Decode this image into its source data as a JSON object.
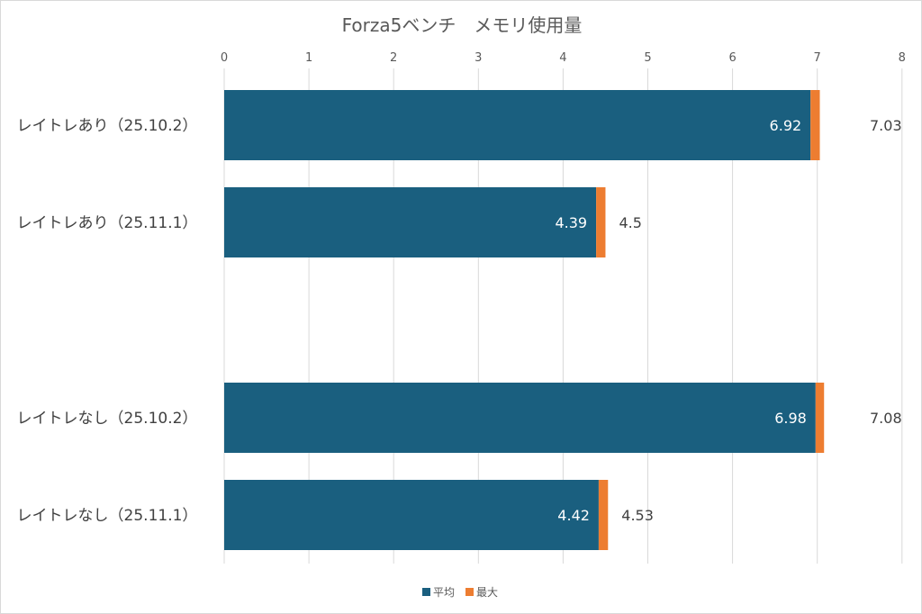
{
  "chart_data": {
    "type": "bar",
    "orientation": "horizontal",
    "stacked": true,
    "title": "Forza5ベンチ　メモリ使用量",
    "xlabel": "",
    "ylabel": "",
    "xlim": [
      0,
      8
    ],
    "x_ticks": [
      "0",
      "1",
      "2",
      "3",
      "4",
      "5",
      "6",
      "7",
      "8"
    ],
    "grid": true,
    "legend_position": "bottom",
    "categories": [
      "レイトレあり（25.10.2）",
      "レイトレあり（25.11.1）",
      "",
      "レイトレなし（25.10.2）",
      "レイトレなし（25.11.1）"
    ],
    "series": [
      {
        "name": "平均",
        "color": "#1a5f7f",
        "values": [
          6.92,
          4.39,
          null,
          6.98,
          4.42
        ],
        "labels": [
          "6.92",
          "4.39",
          "",
          "6.98",
          "4.42"
        ]
      },
      {
        "name": "最大",
        "color": "#ed7d31",
        "values": [
          0.11,
          0.11,
          null,
          0.1,
          0.11
        ],
        "labels": [
          "7.03",
          "4.5",
          "",
          "7.08",
          "4.53"
        ],
        "label_values": [
          7.03,
          4.5,
          null,
          7.08,
          4.53
        ]
      }
    ]
  }
}
